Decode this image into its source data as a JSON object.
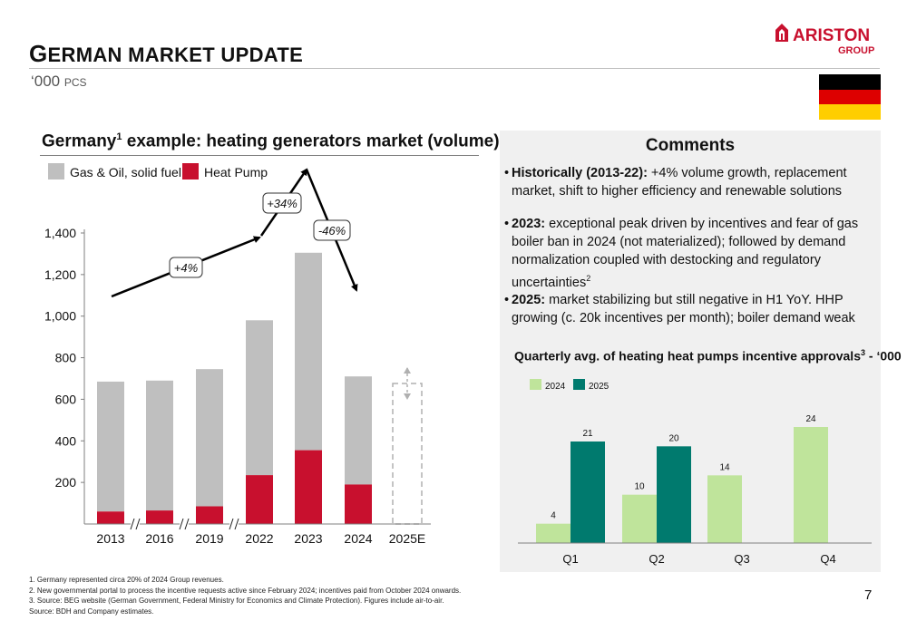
{
  "header": {
    "title_initial": "G",
    "title_rest": "ERMAN MARKET UPDATE",
    "subtitle_prefix": "‘000",
    "subtitle_suffix": "PCS"
  },
  "logo": {
    "brand": "ARISTON",
    "sub": "GROUP"
  },
  "flag": {
    "colors": [
      "#000000",
      "#dd0000",
      "#ffce00"
    ]
  },
  "left_chart": {
    "title_main": "Germany",
    "title_sup": "1",
    "title_rest": " example: heating generators market (volume)"
  },
  "comments": {
    "title": "Comments",
    "bullets": [
      {
        "bold": "Historically (2013-22):",
        "text": " +4% volume growth, replacement market, shift to higher efficiency and renewable solutions",
        "sup": ""
      },
      {
        "bold": "2023:",
        "text": " exceptional peak driven by incentives and fear of gas boiler ban in 2024 (not materialized); followed by demand normalization coupled with destocking and regulatory uncertainties",
        "sup": "2"
      },
      {
        "bold": "2025:",
        "text": " market stabilizing but still negative in H1 YoY. HHP growing (c. 20k incentives per month); boiler demand weak",
        "sup": ""
      }
    ]
  },
  "right_chart": {
    "title_main": "Quarterly avg. of heating heat pumps incentive approvals",
    "title_sup": "3",
    "title_rest": " - ‘000"
  },
  "chart_data": [
    {
      "type": "bar",
      "stacked": true,
      "categories": [
        "2013",
        "2016",
        "2019",
        "2022",
        "2023",
        "2024",
        "2025E"
      ],
      "series": [
        {
          "name": "Heat Pump",
          "color": "#c8102e",
          "values": [
            60,
            65,
            85,
            235,
            355,
            190,
            null
          ]
        },
        {
          "name": "Gas & Oil, solid fuel",
          "color": "#bfbfbf",
          "values": [
            625,
            625,
            660,
            745,
            950,
            520,
            null
          ]
        }
      ],
      "ylim": [
        0,
        1400
      ],
      "yticks": [
        200,
        400,
        600,
        800,
        1000,
        1200,
        1400
      ],
      "ytick_labels": [
        "200",
        "400",
        "600",
        "800",
        "1,000",
        "1,200",
        "1,400"
      ],
      "legend": "top-left",
      "annotations": [
        "+4%",
        "+34%",
        "-46%"
      ],
      "placeholder_category": "2025E"
    },
    {
      "type": "bar",
      "categories": [
        "Q1",
        "Q2",
        "Q3",
        "Q4"
      ],
      "series": [
        {
          "name": "2024",
          "color": "#bfe49b",
          "values": [
            4,
            10,
            14,
            24
          ]
        },
        {
          "name": "2025",
          "color": "#007a6e",
          "values": [
            21,
            20,
            null,
            null
          ]
        }
      ],
      "ylim": [
        0,
        26
      ],
      "legend": "top-left"
    }
  ],
  "footnotes": [
    "1. Germany represented circa 20% of 2024 Group revenues.",
    "2. New governmental portal to process the incentive requests active since February 2024; incentives paid from October 2024 onwards.",
    "3. Source: BEG website (German Government, Federal Ministry for Economics and Climate Protection). Figures include air-to-air.",
    "Source: BDH and Company estimates."
  ],
  "page_number": "7"
}
